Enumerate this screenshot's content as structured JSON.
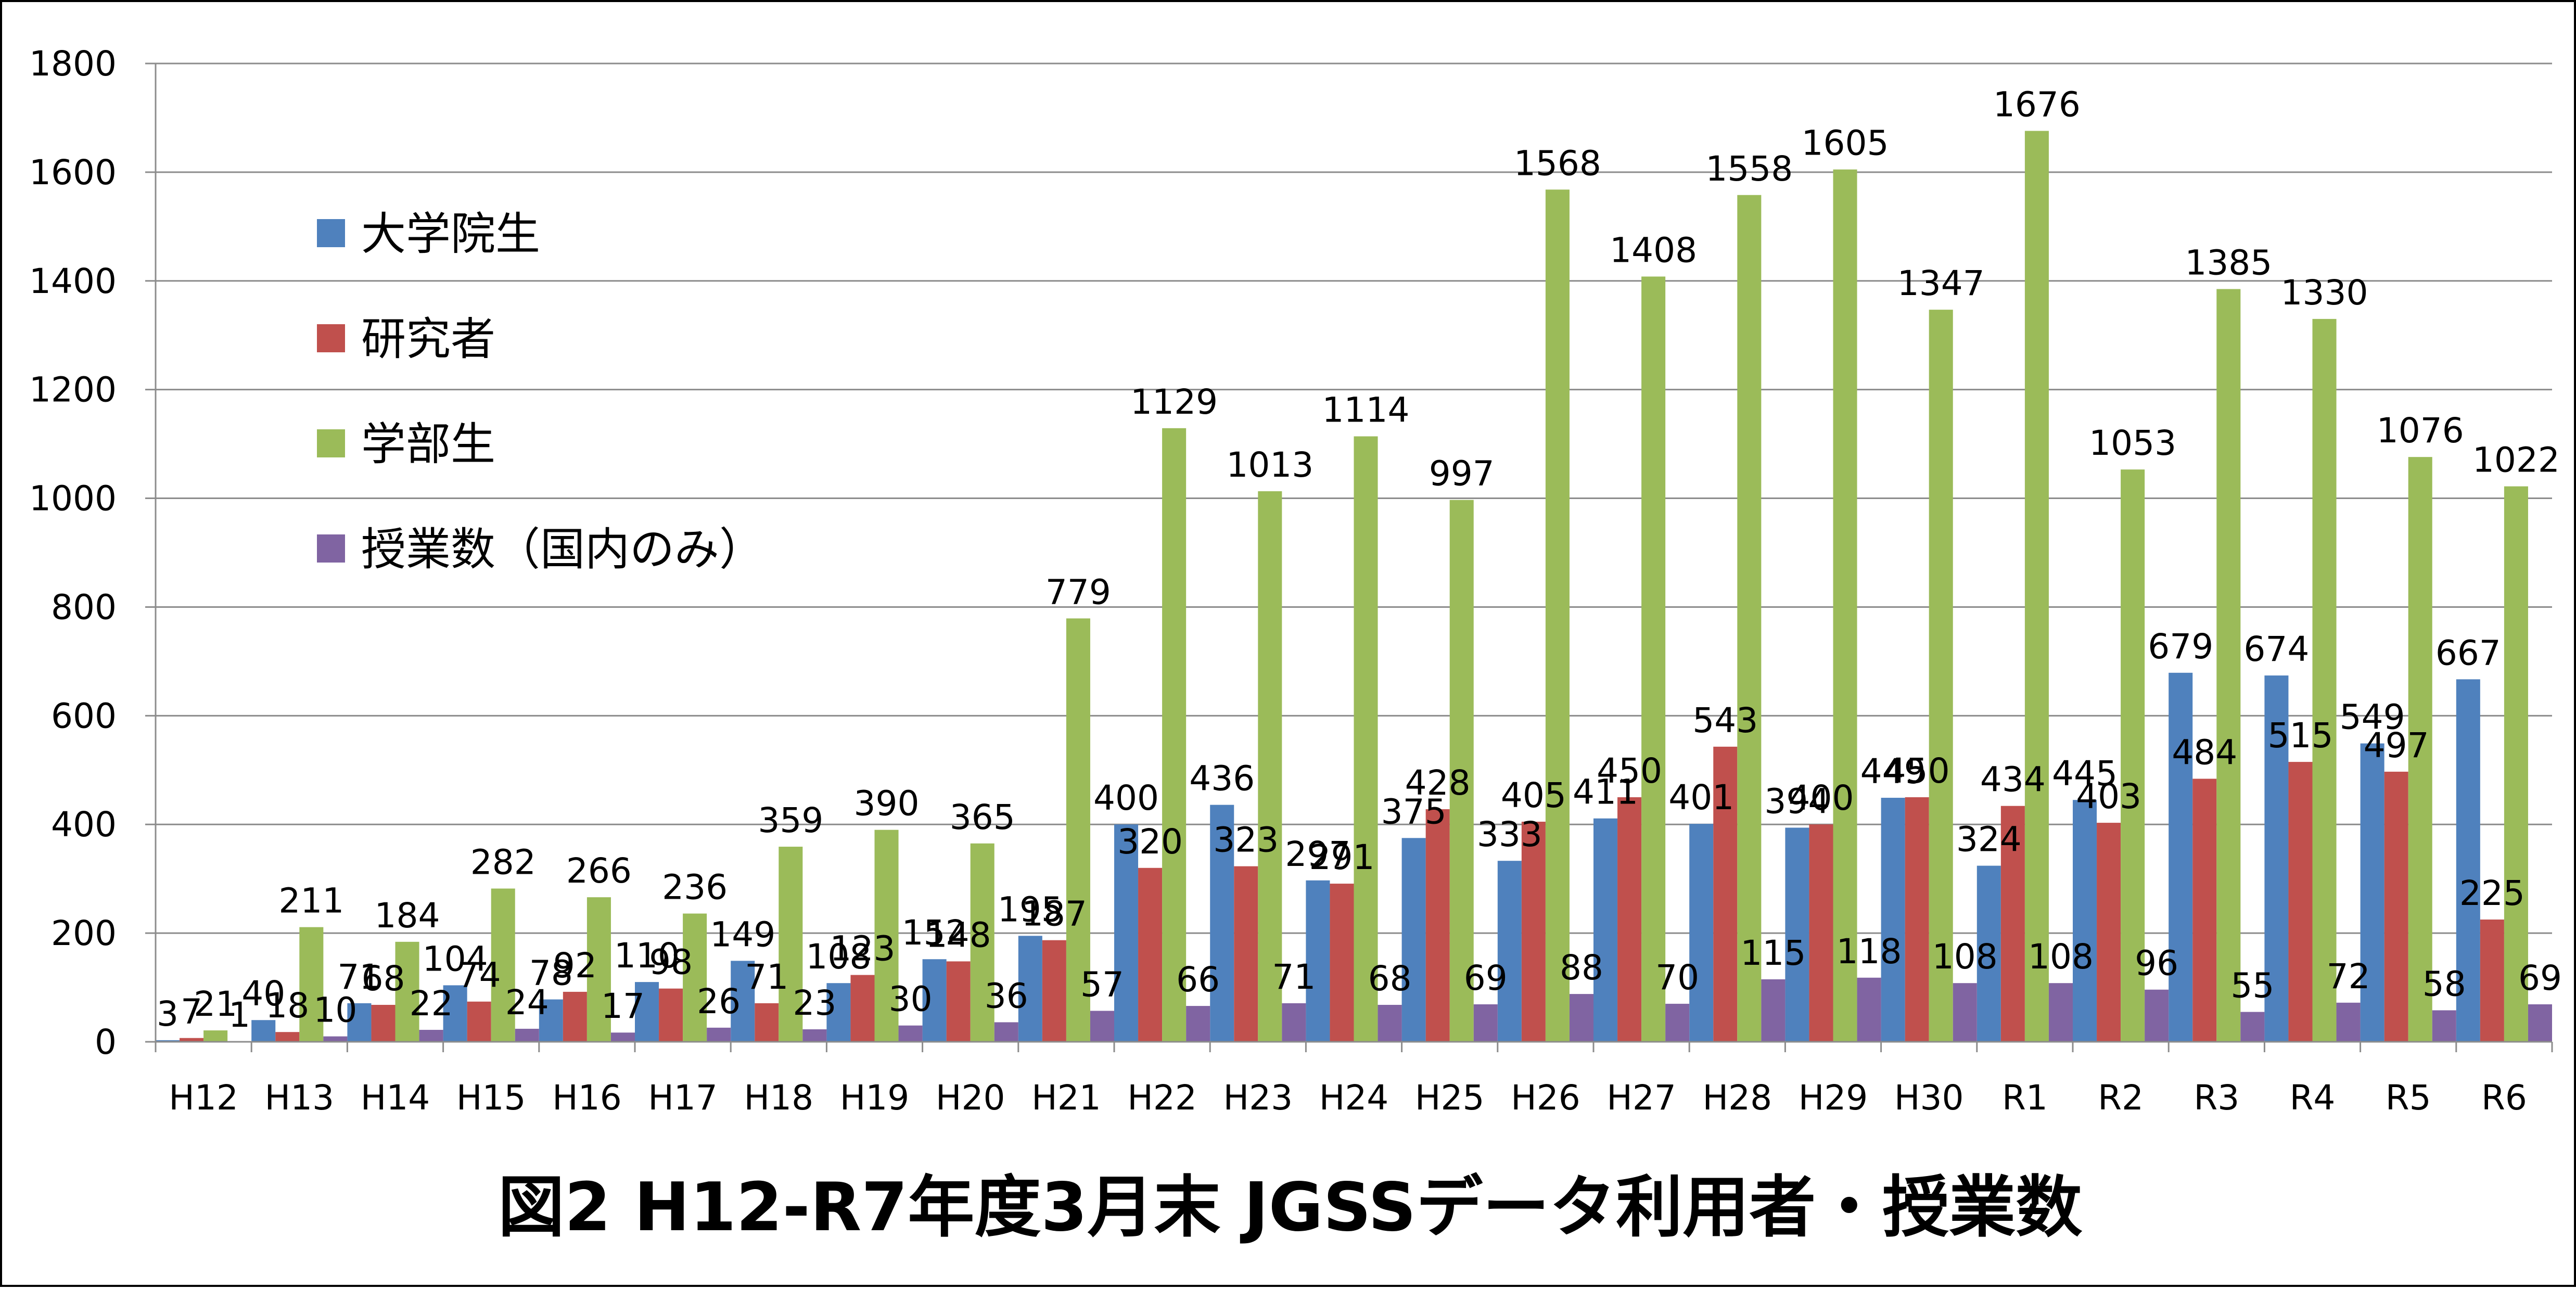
{
  "chart_data": {
    "type": "bar",
    "title": "図2  H12-R7年度3月末 JGSSデータ利用者・授業数",
    "categories": [
      "H12",
      "H13",
      "H14",
      "H15",
      "H16",
      "H17",
      "H18",
      "H19",
      "H20",
      "H21",
      "H22",
      "H23",
      "H24",
      "H25",
      "H26",
      "H27",
      "H28",
      "H29",
      "H30",
      "R1",
      "R2",
      "R3",
      "R4",
      "R5",
      "R6"
    ],
    "ylim": [
      0,
      1800
    ],
    "yticks": [
      0,
      200,
      400,
      600,
      800,
      1000,
      1200,
      1400,
      1600,
      1800
    ],
    "grid": true,
    "legend_position": "top-left",
    "series": [
      {
        "name": "大学院生",
        "color": "#4F81BD",
        "values": [
          3,
          40,
          71,
          104,
          78,
          110,
          149,
          108,
          152,
          195,
          400,
          436,
          297,
          375,
          333,
          411,
          401,
          394,
          449,
          324,
          445,
          679,
          674,
          549,
          667
        ]
      },
      {
        "name": "研究者",
        "color": "#C0504D",
        "values": [
          7,
          18,
          68,
          74,
          92,
          98,
          71,
          123,
          148,
          187,
          320,
          323,
          291,
          428,
          405,
          450,
          543,
          400,
          450,
          434,
          403,
          484,
          515,
          497,
          225
        ]
      },
      {
        "name": "学部生",
        "color": "#9BBB59",
        "values": [
          21,
          211,
          184,
          282,
          266,
          236,
          359,
          390,
          365,
          779,
          1129,
          1013,
          1114,
          997,
          1568,
          1408,
          1558,
          1605,
          1347,
          1676,
          1053,
          1385,
          1330,
          1076,
          1022
        ]
      },
      {
        "name": "授業数（国内のみ）",
        "color": "#8064A2",
        "values": [
          1,
          10,
          22,
          24,
          17,
          26,
          23,
          30,
          36,
          57,
          66,
          71,
          68,
          69,
          88,
          70,
          115,
          118,
          108,
          108,
          96,
          55,
          72,
          58,
          69
        ]
      }
    ]
  }
}
